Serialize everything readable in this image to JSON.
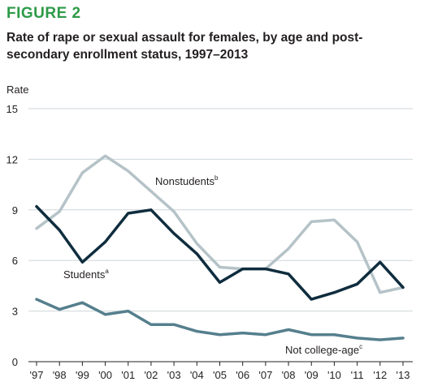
{
  "figure": {
    "label": "FIGURE 2",
    "label_color": "#2e9a48"
  },
  "title": "Rate of rape or sexual assault for females, by age and post-secondary enrollment status, 1997–2013",
  "chart_data": {
    "type": "line",
    "ylabel": "Rate",
    "ylim": [
      0,
      15
    ],
    "yticks": [
      0,
      3,
      6,
      9,
      12,
      15
    ],
    "categories": [
      "'97",
      "'98",
      "'99",
      "'00",
      "'01",
      "'02",
      "'03",
      "'04",
      "'05",
      "'06",
      "'07",
      "'08",
      "'09",
      "'10",
      "'11",
      "'12",
      "'13"
    ],
    "grid": true,
    "series": [
      {
        "name": "Nonstudents",
        "footnote": "b",
        "color": "#b5c3c8",
        "values": [
          7.9,
          8.9,
          11.2,
          12.2,
          11.3,
          10.1,
          8.9,
          7.0,
          5.6,
          5.5,
          5.5,
          6.7,
          8.3,
          8.4,
          7.1,
          4.1,
          4.4
        ]
      },
      {
        "name": "Students",
        "footnote": "a",
        "color": "#0f2d3e",
        "values": [
          9.2,
          7.8,
          5.9,
          7.1,
          8.8,
          9.0,
          7.6,
          6.4,
          4.7,
          5.5,
          5.5,
          5.2,
          3.7,
          4.1,
          4.6,
          5.9,
          4.4
        ]
      },
      {
        "name": "Not college-age",
        "footnote": "c",
        "color": "#557f8d",
        "values": [
          3.7,
          3.1,
          3.5,
          2.8,
          3.0,
          2.2,
          2.2,
          1.8,
          1.6,
          1.7,
          1.6,
          1.9,
          1.6,
          1.6,
          1.4,
          1.3,
          1.4
        ]
      }
    ]
  }
}
